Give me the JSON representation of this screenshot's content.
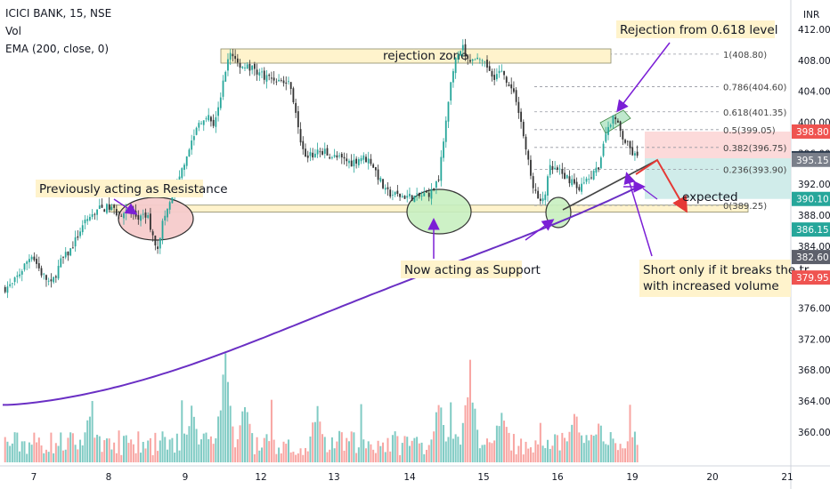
{
  "header": {
    "symbol_line": "ICICI BANK, 15, NSE",
    "vol_label": "Vol",
    "ema_label": "EMA (200, close, 0)"
  },
  "currency": "INR",
  "colors": {
    "up": "#26a69a",
    "down": "#ef5350",
    "up_vol": "#80cbc4",
    "down_vol": "#f8a5a2",
    "ema": "#6a2fc4",
    "annotation": "#7b1fd6",
    "arrow_red": "#e53935",
    "zone_fill": "#fff3cc",
    "support_circle": "#c8f0c0",
    "resistance_circle": "#f6cccc",
    "loss_box": "#fbd4d4",
    "profit_box": "#c8e9e6"
  },
  "annotations": {
    "rejection_zone": "rejection zone",
    "rejection_fib": "Rejection from 0.618 level",
    "prev_resistance": "Previously acting as Resistance",
    "now_support": "Now acting as Support",
    "expected": "expected",
    "short_line1": "Short only if it breaks the tr",
    "short_line2": "with increased volume"
  },
  "chart_data": {
    "type": "candlestick",
    "title": "ICICI BANK, 15, NSE",
    "ylim": [
      360,
      412
    ],
    "y_ticks": [
      360,
      364,
      368,
      372,
      376,
      380,
      384,
      388,
      392,
      396,
      400,
      404,
      408,
      412
    ],
    "x_ticks": [
      "7",
      "8",
      "9",
      "12",
      "13",
      "14",
      "15",
      "16",
      "19",
      "20",
      "21"
    ],
    "fib_levels": [
      {
        "label": "1(408.80)",
        "value": 408.8
      },
      {
        "label": "0.786(404.60)",
        "value": 404.6
      },
      {
        "label": "0.618(401.35)",
        "value": 401.35
      },
      {
        "label": "0.5(399.05)",
        "value": 399.05
      },
      {
        "label": "0.382(396.75)",
        "value": 396.75
      },
      {
        "label": "0.236(393.90)",
        "value": 393.9
      },
      {
        "label": "0(389.25)",
        "value": 389.25
      }
    ],
    "price_tags": [
      {
        "label": "398.80",
        "value": 398.8,
        "color": "#ef5350"
      },
      {
        "label": "395.35",
        "value": 395.35,
        "color": "#26364a"
      },
      {
        "label": "395.15",
        "value": 395.15,
        "color": "#7a7f8a"
      },
      {
        "label": "390.10",
        "value": 390.1,
        "color": "#26a69a"
      },
      {
        "label": "386.15",
        "value": 386.15,
        "color": "#26a69a"
      },
      {
        "label": "382.60",
        "value": 382.6,
        "color": "#5d606b"
      },
      {
        "label": "379.95",
        "value": 379.95,
        "color": "#ef5350"
      }
    ],
    "close_path": [
      [
        0,
        378.5
      ],
      [
        4,
        379
      ],
      [
        8,
        381
      ],
      [
        12,
        383
      ],
      [
        16,
        380.5
      ],
      [
        20,
        379
      ],
      [
        24,
        382
      ],
      [
        28,
        383.5
      ],
      [
        32,
        386
      ],
      [
        36,
        387.8
      ],
      [
        40,
        388.8
      ],
      [
        44,
        389
      ],
      [
        48,
        388.2
      ],
      [
        52,
        388.5
      ],
      [
        56,
        387.6
      ],
      [
        60,
        387.8
      ],
      [
        62,
        385
      ],
      [
        64,
        384
      ],
      [
        66,
        387
      ],
      [
        69,
        389.6
      ],
      [
        72,
        391.5
      ],
      [
        75,
        395
      ],
      [
        78,
        397.5
      ],
      [
        81,
        400
      ],
      [
        84,
        401
      ],
      [
        87,
        399.8
      ],
      [
        90,
        403
      ],
      [
        92,
        407
      ],
      [
        94,
        409
      ],
      [
        97,
        407.6
      ],
      [
        100,
        407.2
      ],
      [
        104,
        406.8
      ],
      [
        108,
        406
      ],
      [
        112,
        405.6
      ],
      [
        116,
        405.2
      ],
      [
        119,
        404.8
      ],
      [
        122,
        399
      ],
      [
        124,
        396.5
      ],
      [
        126,
        395.5
      ],
      [
        129,
        396
      ],
      [
        132,
        396.3
      ],
      [
        136,
        395.6
      ],
      [
        140,
        395.2
      ],
      [
        144,
        394.8
      ],
      [
        148,
        395.5
      ],
      [
        152,
        395
      ],
      [
        155,
        393
      ],
      [
        158,
        391
      ],
      [
        160,
        390.8
      ],
      [
        164,
        390.5
      ],
      [
        168,
        390.4
      ],
      [
        171,
        390.3
      ],
      [
        174,
        390.6
      ],
      [
        177,
        391
      ],
      [
        180,
        393
      ],
      [
        182,
        398
      ],
      [
        184,
        403
      ],
      [
        186,
        407
      ],
      [
        188,
        408.6
      ],
      [
        190,
        409.5
      ],
      [
        192,
        408
      ],
      [
        196,
        407.8
      ],
      [
        200,
        407.2
      ],
      [
        203,
        406
      ],
      [
        206,
        406.6
      ],
      [
        209,
        405
      ],
      [
        212,
        403
      ],
      [
        214,
        400
      ],
      [
        216,
        396.5
      ],
      [
        218,
        393
      ],
      [
        220,
        390.8
      ],
      [
        222,
        389.4
      ],
      [
        224,
        391
      ],
      [
        226,
        394
      ],
      [
        229,
        393.7
      ],
      [
        232,
        393
      ],
      [
        235,
        392.5
      ],
      [
        237,
        391.5
      ],
      [
        240,
        392
      ],
      [
        243,
        393
      ],
      [
        246,
        394
      ],
      [
        248,
        397
      ],
      [
        250,
        399.5
      ],
      [
        252,
        400.8
      ],
      [
        254,
        399.5
      ],
      [
        256,
        398
      ],
      [
        258,
        397
      ],
      [
        260,
        396
      ],
      [
        262,
        395.3
      ]
    ],
    "volume_ticks": {
      "dates": [
        "7",
        "8",
        "9",
        "12",
        "13",
        "14",
        "15",
        "16",
        "19",
        "20",
        "21"
      ]
    }
  }
}
